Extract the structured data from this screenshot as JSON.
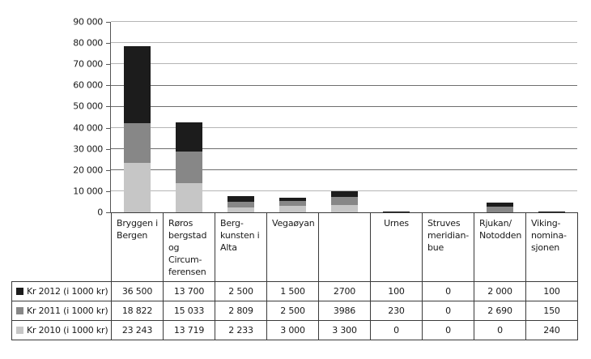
{
  "chart_data": {
    "type": "bar",
    "stacked": true,
    "title": "",
    "xlabel": "",
    "ylabel": "",
    "ylim": [
      0,
      90000
    ],
    "yticks": [
      "0",
      "10 000",
      "20 000",
      "30 000",
      "40 000",
      "50 000",
      "60 000",
      "70 000",
      "80 000",
      "90 000"
    ],
    "grid": true,
    "legend_position": "table-left",
    "categories": [
      "Bryggen i Bergen",
      "Røros bergstad og Circumferensen",
      "Bergkunsten i Alta",
      "Vegaøyan",
      "",
      "Urnes",
      "Struves meridianbue",
      "Rjukan/Notodden",
      "Vikingnominasjonen"
    ],
    "category_labels_display": [
      "Bryggen i\nBergen",
      "Røros\nbergstad\nog\nCircum-\nferensen",
      "Berg-\nkunsten i\nAlta",
      "Vegaøyan",
      "",
      "Urnes",
      "Struves\nmeridian-\nbue",
      "Rjukan/\nNotodden",
      "Viking-\nnomina-\nsjonen"
    ],
    "series": [
      {
        "name": "Kr 2010 (i 1000 kr)",
        "color": "#c6c6c6",
        "values": [
          23243,
          13719,
          2233,
          3000,
          3300,
          0,
          0,
          0,
          240
        ],
        "display": [
          "23 243",
          "13 719",
          "2 233",
          "3 000",
          "3 300",
          "0",
          "0",
          "0",
          "240"
        ]
      },
      {
        "name": "Kr 2011 (i 1000 kr)",
        "color": "#878787",
        "values": [
          18822,
          15033,
          2809,
          2500,
          3986,
          230,
          0,
          2690,
          150
        ],
        "display": [
          "18 822",
          "15 033",
          "2 809",
          "2 500",
          "3986",
          "230",
          "0",
          "2 690",
          "150"
        ]
      },
      {
        "name": "Kr 2012 (i 1000 kr)",
        "color": "#1c1c1c",
        "values": [
          36500,
          13700,
          2500,
          1500,
          2700,
          100,
          0,
          2000,
          100
        ],
        "display": [
          "36 500",
          "13 700",
          "2 500",
          "1 500",
          "2700",
          "100",
          "0",
          "2 000",
          "100"
        ]
      }
    ],
    "table_row_order": [
      "Kr 2012 (i 1000 kr)",
      "Kr 2011 (i 1000 kr)",
      "Kr 2010 (i 1000 kr)"
    ]
  }
}
